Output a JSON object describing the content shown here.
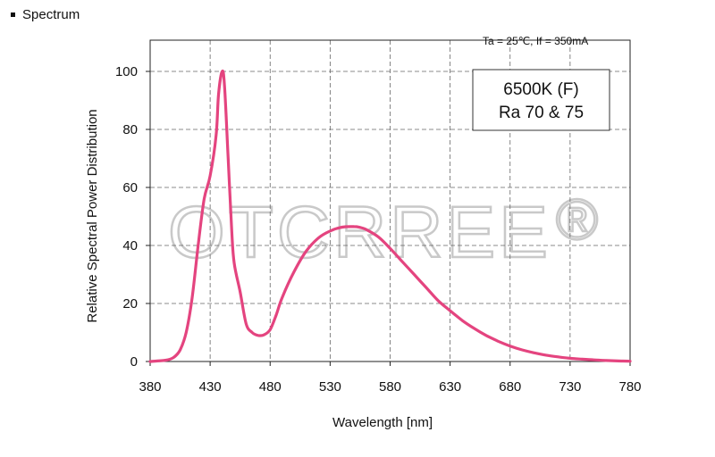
{
  "heading": "Spectrum",
  "watermark": "OTCRREE",
  "watermark_mark": "®",
  "chart_data": {
    "type": "line",
    "title": "",
    "xlabel": "Wavelength [nm]",
    "ylabel": "Relative Spectral Power Distribution",
    "xlim": [
      380,
      780
    ],
    "ylim": [
      0,
      110
    ],
    "xticks": [
      380,
      430,
      480,
      530,
      580,
      630,
      680,
      730,
      780
    ],
    "yticks": [
      0,
      20,
      40,
      60,
      80,
      100
    ],
    "grid": "dashed",
    "conditions": "Ta = 25℃,  If = 350mA",
    "legend_lines": [
      "6500K (F)",
      "Ra 70 & 75"
    ],
    "line_color": "#e4447f",
    "series": [
      {
        "x": [
          380,
          390,
          395,
          400,
          405,
          410,
          415,
          420,
          425,
          430,
          435,
          437,
          440,
          442,
          445,
          448,
          450,
          455,
          460,
          465,
          470,
          475,
          480,
          485,
          490,
          500,
          510,
          520,
          530,
          540,
          550,
          555,
          560,
          570,
          580,
          590,
          600,
          610,
          620,
          630,
          640,
          650,
          660,
          670,
          680,
          690,
          700,
          710,
          720,
          730,
          740,
          750,
          760,
          770,
          780
        ],
        "y": [
          0,
          0.3,
          0.6,
          1.5,
          4,
          10,
          22,
          40,
          56,
          64,
          78,
          92,
          100,
          95,
          70,
          45,
          34,
          24,
          13,
          10,
          9,
          9.2,
          11,
          16,
          22,
          31,
          38,
          42.5,
          45,
          46.3,
          46.5,
          46.2,
          45.5,
          43,
          39,
          34.5,
          30,
          25.5,
          21,
          17.5,
          14.2,
          11.4,
          9,
          7,
          5.3,
          4,
          3,
          2.2,
          1.6,
          1.1,
          0.8,
          0.55,
          0.35,
          0.2,
          0.1
        ]
      }
    ]
  }
}
